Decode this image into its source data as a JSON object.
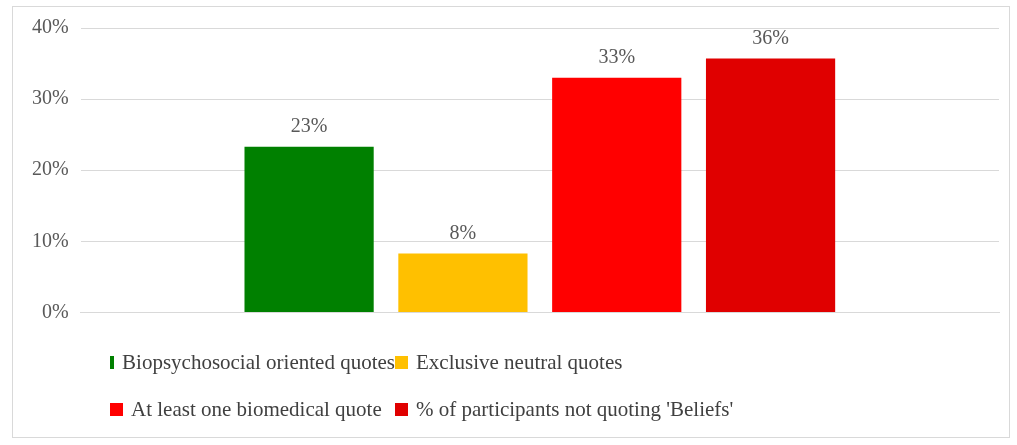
{
  "chart_data": {
    "type": "bar",
    "categories": [
      null
    ],
    "series": [
      {
        "name": "Biopsychosocial oriented quotes",
        "color": "#008000",
        "values": [
          23.3
        ],
        "value_labels": [
          "23%"
        ]
      },
      {
        "name": "Exclusive neutral quotes",
        "color": "#ffc000",
        "values": [
          8.3
        ],
        "value_labels": [
          "8%"
        ]
      },
      {
        "name": "At least one biomedical quote",
        "color": "#ff0000",
        "values": [
          33
        ],
        "value_labels": [
          "33%"
        ]
      },
      {
        "name": "% of participants not quoting 'Beliefs'",
        "color": "#e00000",
        "values": [
          35.7
        ],
        "value_labels": [
          "36%"
        ]
      }
    ],
    "ylim": [
      0,
      40
    ],
    "yticks": [
      {
        "value": 0,
        "label": "0%"
      },
      {
        "value": 10,
        "label": "10%"
      },
      {
        "value": 20,
        "label": "20%"
      },
      {
        "value": 30,
        "label": "30%"
      },
      {
        "value": 40,
        "label": "40%"
      }
    ],
    "grid": "y",
    "legend": "bottom"
  }
}
